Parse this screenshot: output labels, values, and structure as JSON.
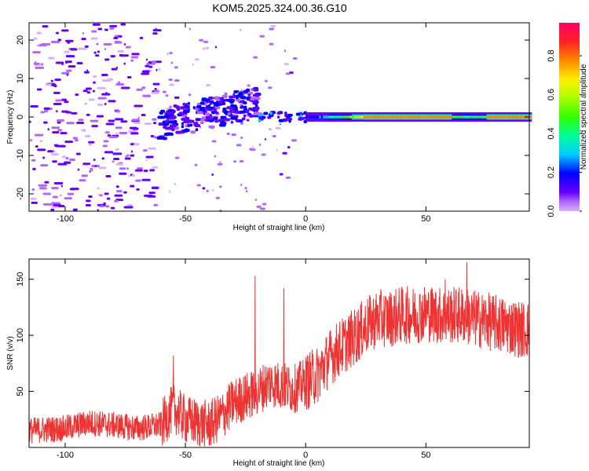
{
  "title": "KOM5.2025.324.00.36.G10",
  "chart_data": [
    {
      "type": "heatmap",
      "xlabel": "Height of straight line (km)",
      "ylabel": "Frequency (Hz)",
      "xlim": [
        -115,
        93
      ],
      "ylim": [
        -24.5,
        24.5
      ],
      "xticks": [
        -100,
        -50,
        0,
        50
      ],
      "yticks": [
        -20,
        -10,
        0,
        10,
        20
      ],
      "colorbar": {
        "label": "Normalized spectral amplitude",
        "range": [
          0,
          0.97
        ],
        "ticks": [
          0,
          0.2,
          0.4,
          0.6,
          0.8
        ]
      },
      "features": [
        {
          "x_range": [
            -115,
            -62
          ],
          "amplitude_range": [
            0.05,
            0.25
          ],
          "desc_level": "low scattered"
        },
        {
          "x_range": [
            -62,
            -20
          ],
          "y_center_start": -2,
          "y_center_end": 4,
          "amplitude_range": [
            0.1,
            0.3
          ]
        },
        {
          "x_range": [
            0,
            93
          ],
          "y_center": 0,
          "amplitude_range": [
            0.2,
            0.95
          ]
        }
      ]
    },
    {
      "type": "line",
      "xlabel": "Height of straight line (km)",
      "ylabel": "SNR (v/v)",
      "xlim": [
        -115,
        93
      ],
      "ylim": [
        0,
        168
      ],
      "xticks": [
        -100,
        -50,
        0,
        50
      ],
      "yticks": [
        50,
        100,
        150
      ],
      "color": "#ee3333",
      "trend": {
        "x": [
          -115,
          -100,
          -90,
          -80,
          -70,
          -60,
          -55,
          -50,
          -45,
          -40,
          -35,
          -30,
          -25,
          -20,
          -15,
          -10,
          -5,
          0,
          5,
          10,
          15,
          20,
          25,
          30,
          35,
          40,
          45,
          50,
          55,
          60,
          65,
          70,
          75,
          80,
          85,
          90,
          93
        ],
        "y": [
          15,
          17,
          22,
          20,
          17,
          20,
          35,
          25,
          22,
          20,
          28,
          40,
          45,
          50,
          58,
          55,
          52,
          58,
          65,
          80,
          90,
          98,
          108,
          115,
          115,
          118,
          118,
          120,
          118,
          118,
          118,
          115,
          113,
          110,
          108,
          105,
          105
        ]
      },
      "spikes": [
        {
          "x": -21,
          "y": 153
        },
        {
          "x": -9,
          "y": 142
        },
        {
          "x": 67,
          "y": 165
        },
        {
          "x": 58,
          "y": 150
        },
        {
          "x": -55,
          "y": 82
        }
      ]
    }
  ]
}
